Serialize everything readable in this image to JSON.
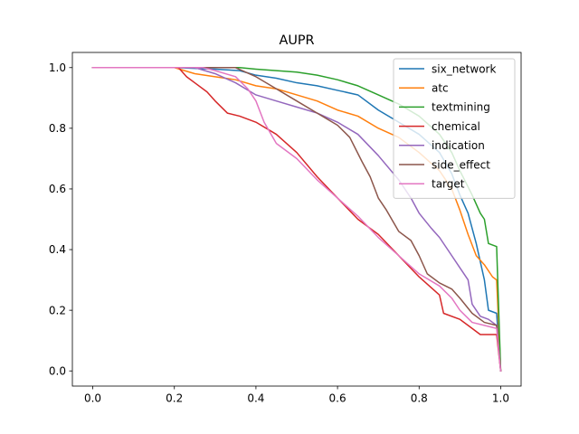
{
  "chart_data": {
    "type": "line",
    "title": "AUPR",
    "xlabel": "",
    "ylabel": "",
    "xlim": [
      -0.05,
      1.05
    ],
    "ylim": [
      -0.05,
      1.05
    ],
    "xticks": [
      0.0,
      0.2,
      0.4,
      0.6,
      0.8,
      1.0
    ],
    "xtick_labels": [
      "0.0",
      "0.2",
      "0.4",
      "0.6",
      "0.8",
      "1.0"
    ],
    "yticks": [
      0.0,
      0.2,
      0.4,
      0.6,
      0.8,
      1.0
    ],
    "ytick_labels": [
      "0.0",
      "0.2",
      "0.4",
      "0.6",
      "0.8",
      "1.0"
    ],
    "grid": false,
    "legend_position": "top-right",
    "series": [
      {
        "name": "six_network",
        "color": "#1f77b4",
        "points": [
          [
            0.0,
            1.0
          ],
          [
            0.2,
            1.0
          ],
          [
            0.3,
            0.995
          ],
          [
            0.36,
            0.99
          ],
          [
            0.4,
            0.975
          ],
          [
            0.45,
            0.965
          ],
          [
            0.5,
            0.95
          ],
          [
            0.55,
            0.94
          ],
          [
            0.6,
            0.925
          ],
          [
            0.65,
            0.91
          ],
          [
            0.7,
            0.86
          ],
          [
            0.75,
            0.82
          ],
          [
            0.8,
            0.78
          ],
          [
            0.85,
            0.72
          ],
          [
            0.88,
            0.65
          ],
          [
            0.9,
            0.58
          ],
          [
            0.92,
            0.52
          ],
          [
            0.94,
            0.42
          ],
          [
            0.96,
            0.3
          ],
          [
            0.97,
            0.2
          ],
          [
            0.99,
            0.19
          ],
          [
            1.0,
            0.0
          ]
        ]
      },
      {
        "name": "atc",
        "color": "#ff7f0e",
        "points": [
          [
            0.0,
            1.0
          ],
          [
            0.2,
            1.0
          ],
          [
            0.25,
            0.98
          ],
          [
            0.3,
            0.97
          ],
          [
            0.35,
            0.96
          ],
          [
            0.4,
            0.94
          ],
          [
            0.45,
            0.93
          ],
          [
            0.5,
            0.91
          ],
          [
            0.55,
            0.89
          ],
          [
            0.6,
            0.86
          ],
          [
            0.65,
            0.84
          ],
          [
            0.7,
            0.8
          ],
          [
            0.75,
            0.77
          ],
          [
            0.8,
            0.72
          ],
          [
            0.85,
            0.66
          ],
          [
            0.88,
            0.6
          ],
          [
            0.9,
            0.53
          ],
          [
            0.92,
            0.45
          ],
          [
            0.94,
            0.38
          ],
          [
            0.96,
            0.35
          ],
          [
            0.98,
            0.31
          ],
          [
            0.99,
            0.3
          ],
          [
            1.0,
            0.0
          ]
        ]
      },
      {
        "name": "textmining",
        "color": "#2ca02c",
        "points": [
          [
            0.0,
            1.0
          ],
          [
            0.36,
            1.0
          ],
          [
            0.4,
            0.995
          ],
          [
            0.45,
            0.99
          ],
          [
            0.5,
            0.985
          ],
          [
            0.55,
            0.975
          ],
          [
            0.6,
            0.96
          ],
          [
            0.65,
            0.94
          ],
          [
            0.7,
            0.91
          ],
          [
            0.75,
            0.88
          ],
          [
            0.8,
            0.84
          ],
          [
            0.85,
            0.78
          ],
          [
            0.88,
            0.72
          ],
          [
            0.9,
            0.66
          ],
          [
            0.93,
            0.58
          ],
          [
            0.95,
            0.52
          ],
          [
            0.96,
            0.5
          ],
          [
            0.97,
            0.42
          ],
          [
            0.99,
            0.41
          ],
          [
            1.0,
            0.0
          ]
        ]
      },
      {
        "name": "chemical",
        "color": "#d62728",
        "points": [
          [
            0.0,
            1.0
          ],
          [
            0.21,
            1.0
          ],
          [
            0.23,
            0.97
          ],
          [
            0.25,
            0.95
          ],
          [
            0.28,
            0.92
          ],
          [
            0.3,
            0.89
          ],
          [
            0.33,
            0.85
          ],
          [
            0.36,
            0.84
          ],
          [
            0.4,
            0.82
          ],
          [
            0.45,
            0.78
          ],
          [
            0.5,
            0.72
          ],
          [
            0.55,
            0.64
          ],
          [
            0.6,
            0.57
          ],
          [
            0.65,
            0.5
          ],
          [
            0.7,
            0.45
          ],
          [
            0.75,
            0.38
          ],
          [
            0.8,
            0.31
          ],
          [
            0.85,
            0.25
          ],
          [
            0.86,
            0.19
          ],
          [
            0.9,
            0.17
          ],
          [
            0.92,
            0.15
          ],
          [
            0.95,
            0.12
          ],
          [
            0.99,
            0.12
          ],
          [
            1.0,
            0.0
          ]
        ]
      },
      {
        "name": "indication",
        "color": "#9467bd",
        "points": [
          [
            0.0,
            1.0
          ],
          [
            0.25,
            1.0
          ],
          [
            0.3,
            0.98
          ],
          [
            0.35,
            0.95
          ],
          [
            0.4,
            0.91
          ],
          [
            0.45,
            0.89
          ],
          [
            0.5,
            0.87
          ],
          [
            0.55,
            0.85
          ],
          [
            0.6,
            0.82
          ],
          [
            0.65,
            0.78
          ],
          [
            0.7,
            0.71
          ],
          [
            0.75,
            0.63
          ],
          [
            0.78,
            0.57
          ],
          [
            0.8,
            0.52
          ],
          [
            0.83,
            0.47
          ],
          [
            0.85,
            0.44
          ],
          [
            0.88,
            0.38
          ],
          [
            0.9,
            0.34
          ],
          [
            0.92,
            0.3
          ],
          [
            0.93,
            0.22
          ],
          [
            0.95,
            0.18
          ],
          [
            0.97,
            0.17
          ],
          [
            0.99,
            0.15
          ],
          [
            1.0,
            0.0
          ]
        ]
      },
      {
        "name": "side_effect",
        "color": "#8c564b",
        "points": [
          [
            0.0,
            1.0
          ],
          [
            0.35,
            1.0
          ],
          [
            0.4,
            0.97
          ],
          [
            0.45,
            0.93
          ],
          [
            0.5,
            0.89
          ],
          [
            0.55,
            0.85
          ],
          [
            0.6,
            0.81
          ],
          [
            0.63,
            0.77
          ],
          [
            0.66,
            0.69
          ],
          [
            0.68,
            0.64
          ],
          [
            0.7,
            0.57
          ],
          [
            0.72,
            0.53
          ],
          [
            0.75,
            0.46
          ],
          [
            0.78,
            0.43
          ],
          [
            0.8,
            0.38
          ],
          [
            0.82,
            0.32
          ],
          [
            0.85,
            0.29
          ],
          [
            0.88,
            0.27
          ],
          [
            0.9,
            0.24
          ],
          [
            0.93,
            0.19
          ],
          [
            0.96,
            0.16
          ],
          [
            0.99,
            0.15
          ],
          [
            1.0,
            0.0
          ]
        ]
      },
      {
        "name": "target",
        "color": "#e377c2",
        "points": [
          [
            0.0,
            1.0
          ],
          [
            0.27,
            1.0
          ],
          [
            0.3,
            0.99
          ],
          [
            0.35,
            0.97
          ],
          [
            0.38,
            0.93
          ],
          [
            0.4,
            0.89
          ],
          [
            0.42,
            0.82
          ],
          [
            0.45,
            0.75
          ],
          [
            0.5,
            0.7
          ],
          [
            0.55,
            0.63
          ],
          [
            0.6,
            0.57
          ],
          [
            0.65,
            0.51
          ],
          [
            0.7,
            0.44
          ],
          [
            0.75,
            0.38
          ],
          [
            0.8,
            0.32
          ],
          [
            0.85,
            0.28
          ],
          [
            0.88,
            0.24
          ],
          [
            0.9,
            0.2
          ],
          [
            0.93,
            0.16
          ],
          [
            0.96,
            0.15
          ],
          [
            0.99,
            0.14
          ],
          [
            1.0,
            0.0
          ]
        ]
      }
    ]
  }
}
